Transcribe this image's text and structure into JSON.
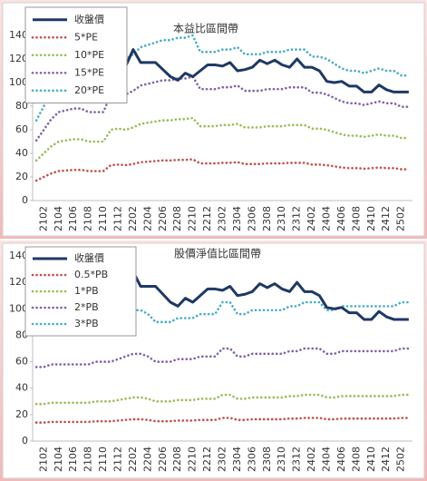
{
  "chart_data": [
    {
      "type": "line",
      "title": "本益比區間帶",
      "categories": [
        null,
        "2102",
        null,
        "2104",
        null,
        "2106",
        null,
        "2108",
        null,
        "2110",
        null,
        "2112",
        null,
        "2202",
        null,
        "2204",
        null,
        "2206",
        null,
        "2208",
        null,
        "2210",
        null,
        "2212",
        null,
        "2302",
        null,
        "2304",
        null,
        "2306",
        null,
        "2308",
        null,
        "2310",
        null,
        "2312",
        null,
        "2402",
        null,
        "2404",
        null,
        "2406",
        null,
        "2408",
        null,
        "2410",
        null,
        "2412",
        null,
        "2502",
        null
      ],
      "ylim": [
        0,
        140
      ],
      "yticks": [
        0,
        20,
        40,
        60,
        80,
        100,
        120,
        140
      ],
      "grid": false,
      "legend": "top-left",
      "series": [
        {
          "name": "收盤價",
          "color": "#1f3864",
          "style": "solid",
          "values": [
            95,
            100,
            105,
            110,
            113,
            115,
            112,
            110,
            114,
            118,
            117,
            115,
            114,
            128,
            117,
            117,
            117,
            111,
            105,
            102,
            108,
            105,
            110,
            115,
            115,
            114,
            117,
            110,
            111,
            113,
            119,
            116,
            119,
            115,
            113,
            120,
            113,
            113,
            110,
            101,
            100,
            101,
            97,
            97,
            92,
            92,
            98,
            94,
            92,
            92,
            92
          ]
        },
        {
          "name": "5*PE",
          "color": "#c0504d",
          "style": "dotted",
          "values": [
            17,
            20,
            23,
            25,
            25.5,
            26,
            26,
            25,
            25,
            25,
            30,
            30.5,
            30,
            31,
            32.5,
            33,
            33.5,
            34,
            34,
            34.5,
            34.5,
            35,
            31.5,
            31.5,
            31.5,
            32,
            32,
            32.5,
            31,
            31,
            31,
            31.5,
            31.5,
            31.5,
            32,
            32,
            32,
            30.5,
            30.5,
            30,
            29,
            28,
            27.5,
            27.5,
            27,
            27.5,
            28,
            27.5,
            27.5,
            26.5,
            26.5
          ]
        },
        {
          "name": "10*PE",
          "color": "#9bbb59",
          "style": "dotted",
          "values": [
            34,
            40,
            46,
            50,
            51,
            52,
            52,
            50,
            50,
            50,
            60,
            61,
            60,
            62,
            65,
            66,
            67,
            68,
            68,
            69,
            69,
            70,
            63,
            63,
            63,
            64,
            64,
            65,
            62,
            62,
            62,
            63,
            63,
            63,
            64,
            64,
            64,
            61,
            61,
            60,
            58,
            56,
            55,
            55,
            54,
            55,
            56,
            55,
            55,
            53,
            53
          ]
        },
        {
          "name": "15*PE",
          "color": "#8064a2",
          "style": "dotted",
          "values": [
            51,
            60,
            69,
            75,
            76.5,
            78,
            78,
            75,
            75,
            75,
            90,
            91.5,
            90,
            93,
            97.5,
            99,
            100.5,
            102,
            102,
            103.5,
            103.5,
            105,
            94.5,
            94.5,
            94.5,
            96,
            96,
            97.5,
            93,
            93,
            93,
            94.5,
            94.5,
            94.5,
            96,
            96,
            96,
            91.5,
            91.5,
            90,
            87,
            84,
            82.5,
            82.5,
            81,
            82.5,
            84,
            82.5,
            82.5,
            79.5,
            79.5
          ]
        },
        {
          "name": "20*PE",
          "color": "#4bacc6",
          "style": "dotted",
          "values": [
            68,
            80,
            92,
            100,
            102,
            104,
            104,
            100,
            100,
            100,
            120,
            122,
            120,
            124,
            130,
            132,
            134,
            136,
            136,
            138,
            138,
            140,
            126,
            126,
            126,
            128,
            128,
            130,
            124,
            124,
            124,
            126,
            126,
            126,
            128,
            128,
            128,
            122,
            122,
            120,
            116,
            112,
            110,
            110,
            108,
            110,
            112,
            110,
            110,
            106,
            106
          ]
        }
      ]
    },
    {
      "type": "line",
      "title": "股價淨值比區間帶",
      "categories": [
        null,
        "2102",
        null,
        "2104",
        null,
        "2106",
        null,
        "2108",
        null,
        "2110",
        null,
        "2112",
        null,
        "2202",
        null,
        "2204",
        null,
        "2206",
        null,
        "2208",
        null,
        "2210",
        null,
        "2212",
        null,
        "2302",
        null,
        "2304",
        null,
        "2306",
        null,
        "2308",
        null,
        "2310",
        null,
        "2312",
        null,
        "2402",
        null,
        "2404",
        null,
        "2406",
        null,
        "2408",
        null,
        "2410",
        null,
        "2412",
        null,
        "2502",
        null
      ],
      "ylim": [
        0,
        140
      ],
      "yticks": [
        0,
        20,
        40,
        60,
        80,
        100,
        120,
        140
      ],
      "grid": false,
      "legend": "top-left",
      "series": [
        {
          "name": "收盤價",
          "color": "#1f3864",
          "style": "solid",
          "values": [
            95,
            100,
            105,
            110,
            113,
            115,
            112,
            110,
            114,
            118,
            117,
            115,
            114,
            128,
            117,
            117,
            117,
            111,
            105,
            102,
            108,
            105,
            110,
            115,
            115,
            114,
            117,
            110,
            111,
            113,
            119,
            116,
            119,
            115,
            113,
            120,
            113,
            113,
            110,
            101,
            100,
            101,
            97,
            97,
            92,
            92,
            98,
            94,
            92,
            92,
            92
          ]
        },
        {
          "name": "0.5*PB",
          "color": "#c0504d",
          "style": "dotted",
          "values": [
            14,
            14,
            14.5,
            14.5,
            14.5,
            14.5,
            14.5,
            14.5,
            15,
            15,
            15,
            15.5,
            16,
            16.5,
            16.5,
            16,
            15,
            15,
            15,
            15.5,
            15.5,
            15.5,
            16,
            16,
            16,
            17.5,
            17.5,
            16,
            16,
            16.5,
            16.5,
            16.5,
            16.5,
            16.5,
            17,
            17,
            17.5,
            17.5,
            17.5,
            16.5,
            16.5,
            17,
            17,
            17,
            17,
            17,
            17,
            17,
            17,
            17.5,
            17.5
          ]
        },
        {
          "name": "1*PB",
          "color": "#9bbb59",
          "style": "dotted",
          "values": [
            28,
            28,
            29,
            29,
            29,
            29,
            29,
            29,
            30,
            30,
            30,
            31,
            32,
            33,
            33,
            32,
            30,
            30,
            30,
            31,
            31,
            31,
            32,
            32,
            32,
            35,
            35,
            32,
            32,
            33,
            33,
            33,
            33,
            33,
            34,
            34,
            35,
            35,
            35,
            33,
            33,
            34,
            34,
            34,
            34,
            34,
            34,
            34,
            34,
            35,
            35
          ]
        },
        {
          "name": "2*PB",
          "color": "#8064a2",
          "style": "dotted",
          "values": [
            56,
            56,
            58,
            58,
            58,
            58,
            58,
            58,
            60,
            60,
            60,
            62,
            64,
            66,
            66,
            64,
            60,
            60,
            60,
            62,
            62,
            62,
            64,
            64,
            64,
            70,
            70,
            64,
            64,
            66,
            66,
            66,
            66,
            66,
            68,
            68,
            70,
            70,
            70,
            66,
            66,
            68,
            68,
            68,
            68,
            68,
            68,
            68,
            68,
            70,
            70
          ]
        },
        {
          "name": "3*PB",
          "color": "#4bacc6",
          "style": "dotted",
          "values": [
            84,
            84,
            87,
            87,
            87,
            87,
            87,
            87,
            90,
            90,
            90,
            93,
            96,
            99,
            99,
            96,
            90,
            90,
            90,
            93,
            93,
            93,
            96,
            96,
            96,
            105,
            105,
            96,
            96,
            99,
            99,
            99,
            99,
            99,
            102,
            102,
            105,
            105,
            105,
            99,
            99,
            102,
            102,
            102,
            102,
            102,
            102,
            102,
            102,
            105,
            105
          ]
        }
      ]
    }
  ]
}
